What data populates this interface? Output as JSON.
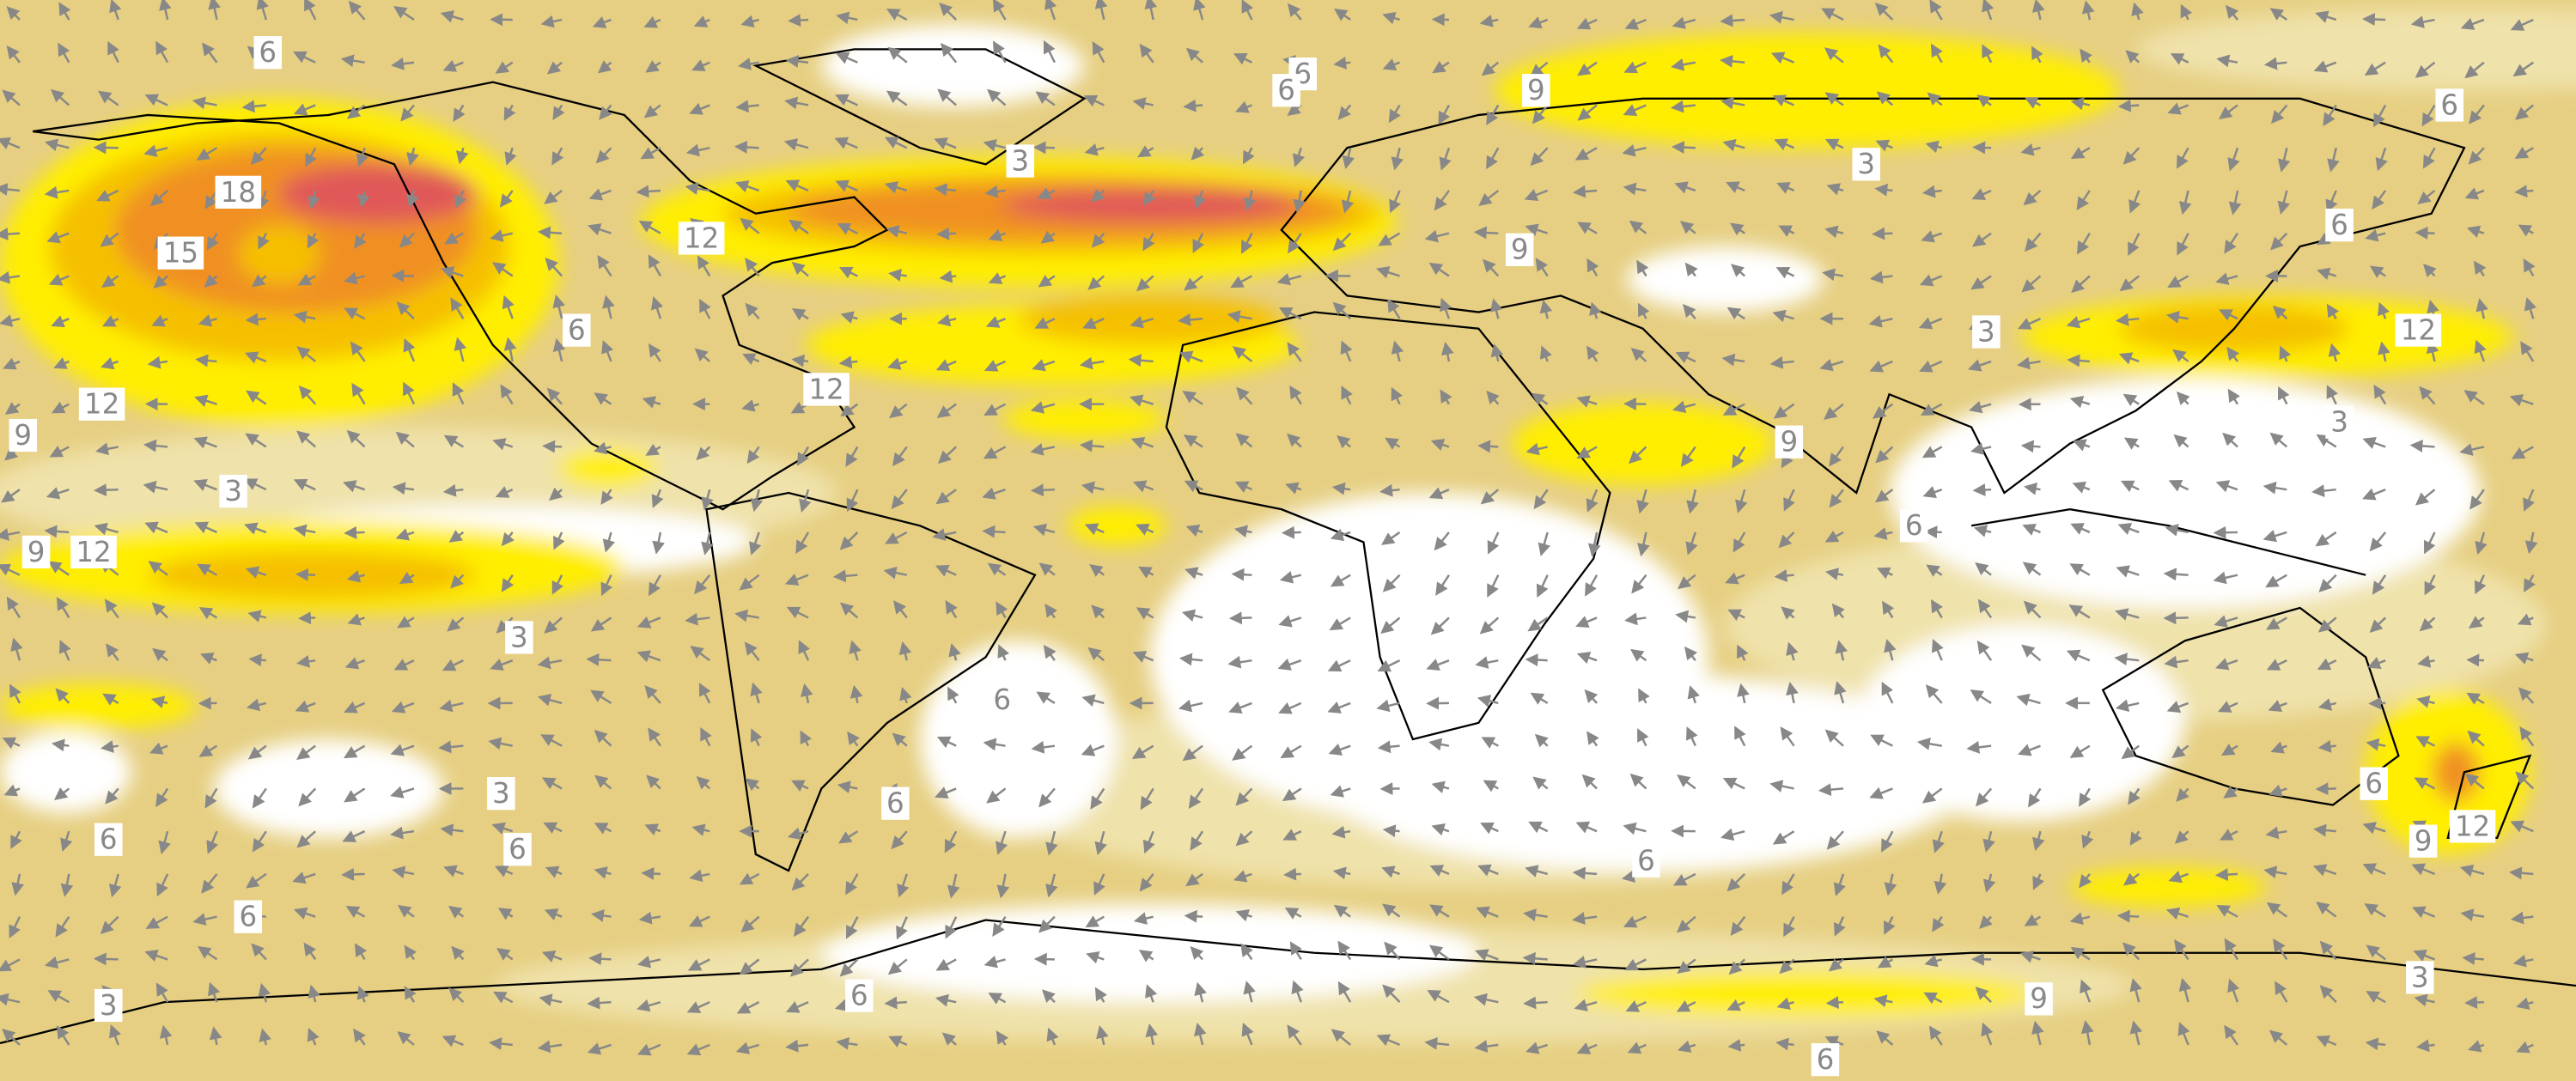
{
  "contour_labels": [
    "6",
    "6",
    "6",
    "9",
    "6",
    "3",
    "3",
    "18",
    "12",
    "15",
    "9",
    "6",
    "6",
    "3",
    "12",
    "12",
    "12",
    "9",
    "3",
    "9",
    "3",
    "9",
    "12",
    "6",
    "3",
    "6",
    "3",
    "6",
    "6",
    "6",
    "6",
    "9",
    "12",
    "6",
    "6",
    "3",
    "6",
    "9",
    "3",
    "6"
  ]
}
